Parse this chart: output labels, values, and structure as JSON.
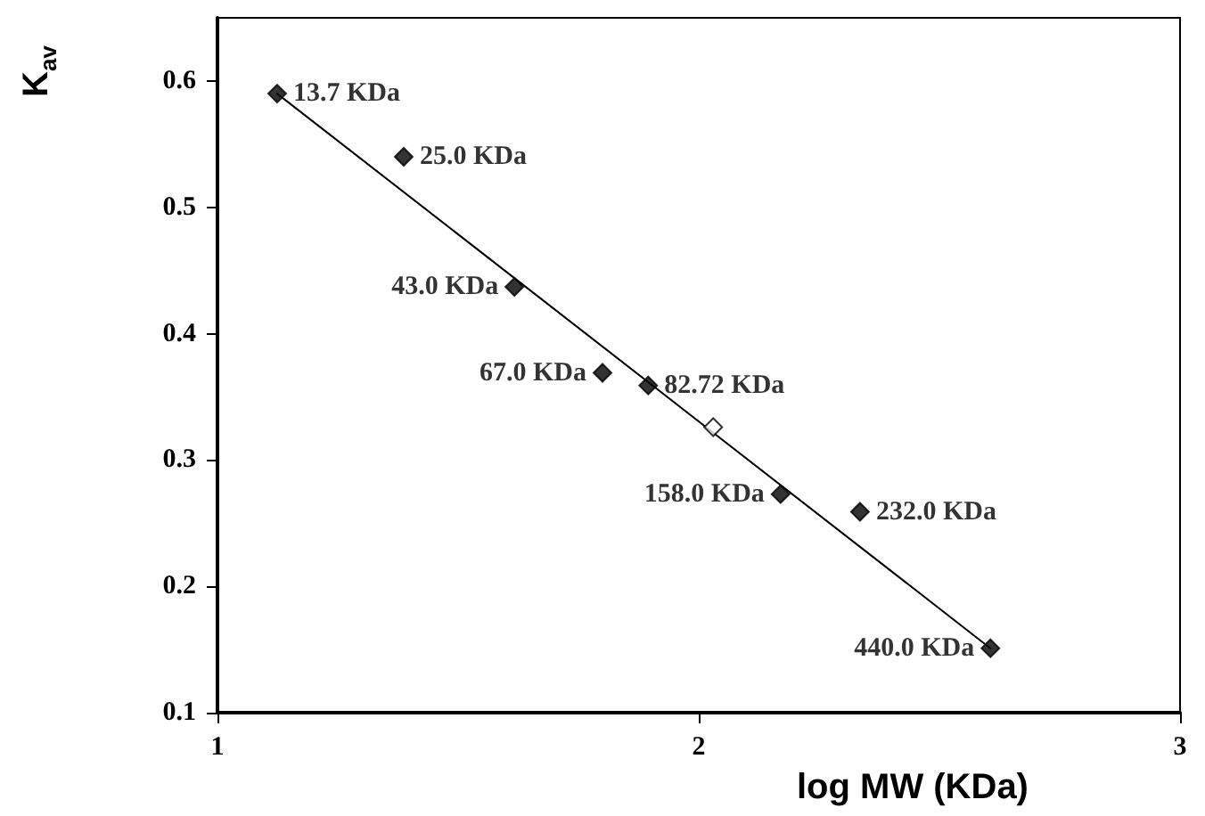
{
  "chart_data": {
    "type": "scatter",
    "xlabel": "log MW (KDa)",
    "ylabel": "K$_{av}$",
    "xlim": [
      1,
      3
    ],
    "xticks": [
      1,
      2,
      3
    ],
    "ylim": [
      0.1,
      0.65
    ],
    "yticks": [
      0.1,
      0.2,
      0.3,
      0.4,
      0.5,
      0.6
    ],
    "marker": "diamond",
    "series": [
      {
        "type": "line",
        "color": "#000000",
        "x": [
          1.124,
          2.606
        ],
        "values": [
          0.59,
          0.151
        ],
        "marker": "none"
      },
      {
        "color": "#000000",
        "x": [
          1.124,
          1.387,
          1.617,
          1.8,
          1.895,
          2.17,
          2.335,
          2.606
        ],
        "values": [
          0.59,
          0.54,
          0.437,
          0.369,
          0.359,
          0.273,
          0.259,
          0.151
        ]
      },
      {
        "color": "#ffffff",
        "x": [
          2.03
        ],
        "values": [
          0.326
        ]
      }
    ],
    "annotations": [
      {
        "text": "13.7 KDa",
        "x": 1.124,
        "y": 0.59
      },
      {
        "text": "25.0 KDa",
        "x": 1.387,
        "y": 0.54
      },
      {
        "text": "43.0 KDa",
        "x": 1.617,
        "y": 0.437
      },
      {
        "text": "67.0 KDa",
        "x": 1.8,
        "y": 0.369
      },
      {
        "text": "82.72 KDa",
        "x": 1.895,
        "y": 0.359
      },
      {
        "text": "158.0 KDa",
        "x": 2.17,
        "y": 0.273
      },
      {
        "text": "232.0 KDa",
        "x": 2.335,
        "y": 0.259
      },
      {
        "text": "440.0 KDa",
        "x": 2.606,
        "y": 0.151
      }
    ]
  }
}
